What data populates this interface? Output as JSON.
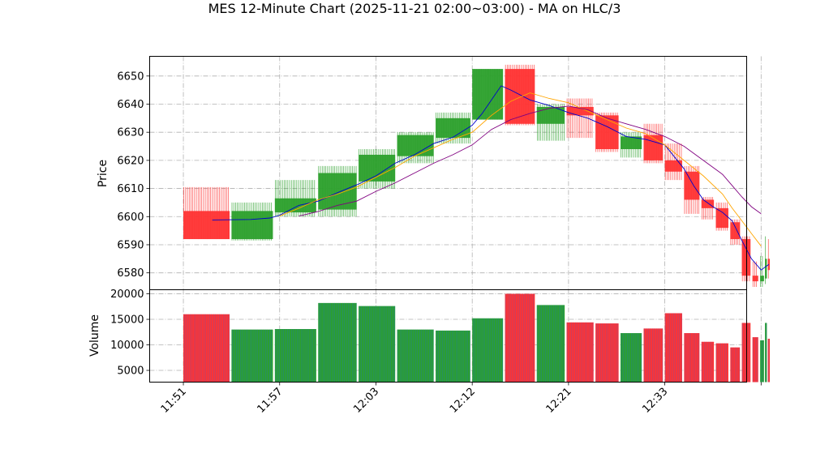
{
  "chart_data": {
    "type": "candlestick",
    "title": "MES 12-Minute Chart (2025-11-21 02:00~03:00) - MA on HLC/3",
    "price_panel": {
      "ylabel": "Price",
      "ylim": [
        6574,
        6657
      ],
      "yticks": [
        6580,
        6590,
        6600,
        6610,
        6620,
        6630,
        6640,
        6650
      ],
      "grid": true
    },
    "volume_panel": {
      "ylabel": "Volume",
      "ylim": [
        2700,
        20800
      ],
      "yticks": [
        5000,
        10000,
        15000,
        20000
      ],
      "grid": true
    },
    "xlim": [
      -3.5,
      58.5
    ],
    "xticks": [
      {
        "i": 0,
        "label": "11:51"
      },
      {
        "i": 10,
        "label": "11:57"
      },
      {
        "i": 20,
        "label": "12:03"
      },
      {
        "i": 30,
        "label": "12:12"
      },
      {
        "i": 40,
        "label": "12:21"
      },
      {
        "i": 50,
        "label": "12:33"
      },
      {
        "i": 60,
        "label": ""
      }
    ],
    "colors": {
      "up": "#2ca02c",
      "down": "#ff3333",
      "ma_fast": "#0000cc",
      "ma_mid": "#ffa500",
      "ma_slow": "#800080",
      "grid": "#b0b0b0"
    },
    "bars": [
      {
        "start": 0,
        "end": 4.8,
        "open": 6602,
        "high": 6610.5,
        "low": 6592,
        "close": 6592,
        "volume": 16000
      },
      {
        "start": 5,
        "end": 9.3,
        "open": 6592,
        "high": 6605,
        "low": 6591.5,
        "close": 6602,
        "volume": 13000
      },
      {
        "start": 9.5,
        "end": 13.8,
        "open": 6601.5,
        "high": 6613,
        "low": 6600,
        "close": 6606.5,
        "volume": 13100
      },
      {
        "start": 14,
        "end": 18,
        "open": 6602.5,
        "high": 6618,
        "low": 6600,
        "close": 6615.5,
        "volume": 18200
      },
      {
        "start": 18.2,
        "end": 22,
        "open": 6612.5,
        "high": 6624,
        "low": 6610,
        "close": 6622,
        "volume": 17600
      },
      {
        "start": 22.2,
        "end": 26,
        "open": 6621.5,
        "high": 6630,
        "low": 6619,
        "close": 6629,
        "volume": 13000
      },
      {
        "start": 26.2,
        "end": 29.8,
        "open": 6628,
        "high": 6637,
        "low": 6626,
        "close": 6635,
        "volume": 12800
      },
      {
        "start": 30,
        "end": 33.2,
        "open": 6634.5,
        "high": 6652.5,
        "low": 6634.5,
        "close": 6652.5,
        "volume": 15200
      },
      {
        "start": 33.4,
        "end": 36.5,
        "open": 6652.5,
        "high": 6654,
        "low": 6632.5,
        "close": 6633,
        "volume": 20000
      },
      {
        "start": 36.7,
        "end": 39.6,
        "open": 6633,
        "high": 6640,
        "low": 6627,
        "close": 6639,
        "volume": 17800
      },
      {
        "start": 39.8,
        "end": 42.6,
        "open": 6639,
        "high": 6642,
        "low": 6628,
        "close": 6636,
        "volume": 14400
      },
      {
        "start": 42.8,
        "end": 45.2,
        "open": 6636,
        "high": 6637,
        "low": 6623,
        "close": 6624,
        "volume": 14200
      },
      {
        "start": 45.4,
        "end": 47.6,
        "open": 6624,
        "high": 6630,
        "low": 6621,
        "close": 6628.5,
        "volume": 12300
      },
      {
        "start": 47.8,
        "end": 49.8,
        "open": 6629,
        "high": 6633,
        "low": 6619,
        "close": 6620,
        "volume": 13200
      },
      {
        "start": 50,
        "end": 51.8,
        "open": 6620,
        "high": 6626,
        "low": 6613,
        "close": 6616,
        "volume": 16200
      },
      {
        "start": 52,
        "end": 53.6,
        "open": 6616,
        "high": 6618,
        "low": 6601,
        "close": 6606,
        "volume": 12300
      },
      {
        "start": 53.8,
        "end": 55.1,
        "open": 6606,
        "high": 6607,
        "low": 6599,
        "close": 6603,
        "volume": 10600
      },
      {
        "start": 55.3,
        "end": 56.6,
        "open": 6603,
        "high": 6605,
        "low": 6595,
        "close": 6596,
        "volume": 10300
      },
      {
        "start": 56.8,
        "end": 57.8,
        "open": 6598,
        "high": 6599,
        "low": 6590,
        "close": 6592,
        "volume": 9500
      },
      {
        "start": 58,
        "end": 58.9,
        "open": 6592,
        "high": 6593,
        "low": 6577,
        "close": 6579,
        "volume": 14300
      },
      {
        "start": 59.1,
        "end": 59.7,
        "open": 6579,
        "high": 6584,
        "low": 6575,
        "close": 6577,
        "volume": 11500
      },
      {
        "start": 59.9,
        "end": 60.3,
        "open": 6577,
        "high": 6586,
        "low": 6575,
        "close": 6579,
        "volume": 10900
      },
      {
        "start": 60.4,
        "end": 60.6,
        "open": 6578,
        "high": 6593,
        "low": 6576,
        "close": 6585,
        "volume": 14300
      },
      {
        "start": 60.7,
        "end": 60.9,
        "open": 6585,
        "high": 6592,
        "low": 6578,
        "close": 6581,
        "volume": 11200
      }
    ],
    "moving_averages": [
      {
        "name": "MA fast",
        "color": "#0000cc",
        "points": [
          [
            3,
            6598.8
          ],
          [
            7,
            6599
          ],
          [
            9,
            6599.5
          ],
          [
            10,
            6600.5
          ],
          [
            12,
            6604
          ],
          [
            14,
            6605.5
          ],
          [
            16,
            6608.5
          ],
          [
            18,
            6611.3
          ],
          [
            20,
            6614.5
          ],
          [
            22,
            6619
          ],
          [
            24,
            6622
          ],
          [
            26,
            6626
          ],
          [
            28,
            6628.2
          ],
          [
            30,
            6632.5
          ],
          [
            31,
            6636.5
          ],
          [
            32,
            6641.5
          ],
          [
            33,
            6646.5
          ],
          [
            34,
            6645
          ],
          [
            36,
            6641.5
          ],
          [
            38,
            6639.5
          ],
          [
            40,
            6637
          ],
          [
            42,
            6635
          ],
          [
            44,
            6632
          ],
          [
            46,
            6628.5
          ],
          [
            48,
            6627.5
          ],
          [
            50,
            6625.5
          ],
          [
            52,
            6617
          ],
          [
            53,
            6611
          ],
          [
            54,
            6606
          ],
          [
            55,
            6603.5
          ],
          [
            56,
            6601.5
          ],
          [
            57,
            6598.5
          ],
          [
            58,
            6591.5
          ],
          [
            59,
            6585
          ],
          [
            60,
            6581
          ],
          [
            60.8,
            6583
          ]
        ]
      },
      {
        "name": "MA mid",
        "color": "#ffa500",
        "points": [
          [
            10,
            6600.2
          ],
          [
            12,
            6603
          ],
          [
            14,
            6606
          ],
          [
            16,
            6608
          ],
          [
            18,
            6610.5
          ],
          [
            20,
            6614
          ],
          [
            22,
            6617.5
          ],
          [
            24,
            6621.5
          ],
          [
            26,
            6624.5
          ],
          [
            28,
            6627.5
          ],
          [
            30,
            6630
          ],
          [
            32,
            6636
          ],
          [
            34,
            6641
          ],
          [
            36,
            6644
          ],
          [
            38,
            6642
          ],
          [
            40,
            6640.5
          ],
          [
            42,
            6637.5
          ],
          [
            44,
            6634.5
          ],
          [
            46,
            6631.5
          ],
          [
            48,
            6629.5
          ],
          [
            50,
            6625.5
          ],
          [
            52,
            6620
          ],
          [
            54,
            6614.5
          ],
          [
            56,
            6608
          ],
          [
            57,
            6603
          ],
          [
            58,
            6598.5
          ],
          [
            59,
            6594
          ],
          [
            60,
            6589.5
          ]
        ]
      },
      {
        "name": "MA slow",
        "color": "#800080",
        "points": [
          [
            12,
            6600.2
          ],
          [
            14,
            6601.8
          ],
          [
            16,
            6604
          ],
          [
            18,
            6605.5
          ],
          [
            20,
            6609
          ],
          [
            22,
            6612
          ],
          [
            24,
            6615.5
          ],
          [
            26,
            6619
          ],
          [
            28,
            6622
          ],
          [
            30,
            6625.5
          ],
          [
            32,
            6631
          ],
          [
            34,
            6634.5
          ],
          [
            36,
            6636.7
          ],
          [
            38,
            6638.5
          ],
          [
            40,
            6639.3
          ],
          [
            42,
            6638
          ],
          [
            44,
            6635
          ],
          [
            46,
            6633
          ],
          [
            48,
            6631
          ],
          [
            50,
            6628.5
          ],
          [
            52,
            6625
          ],
          [
            54,
            6620
          ],
          [
            56,
            6615
          ],
          [
            57,
            6611
          ],
          [
            58,
            6607
          ],
          [
            59,
            6603.5
          ],
          [
            60,
            6601
          ]
        ]
      }
    ]
  }
}
